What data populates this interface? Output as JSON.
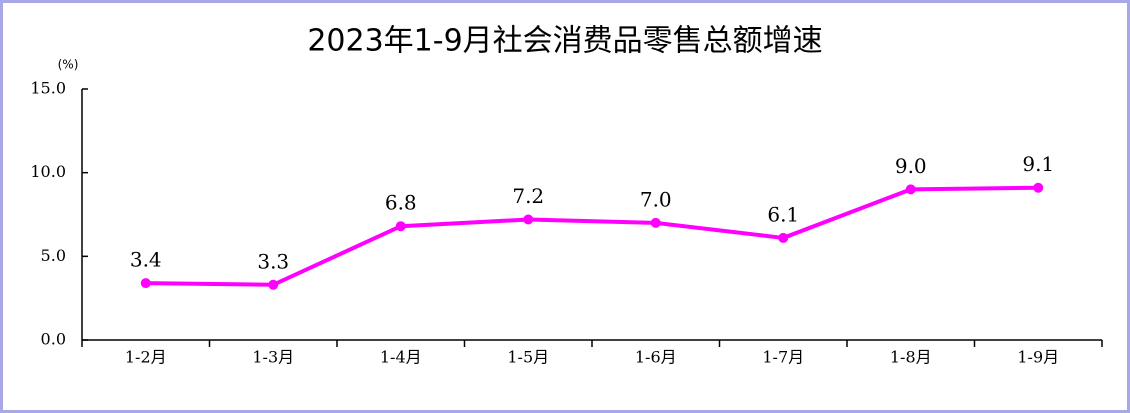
{
  "chart_data": {
    "type": "line",
    "title": "2023年1-9月社会消费品零售总额增速",
    "y_unit": "(%)",
    "categories": [
      "1-2月",
      "1-3月",
      "1-4月",
      "1-5月",
      "1-6月",
      "1-7月",
      "1-8月",
      "1-9月"
    ],
    "series": [
      {
        "color": "#ff00ff",
        "values": [
          3.4,
          3.3,
          6.8,
          7.2,
          7.0,
          6.1,
          9.0,
          9.1
        ],
        "value_labels": [
          "3.4",
          "3.3",
          "6.8",
          "7.2",
          "7.0",
          "6.1",
          "9.0",
          "9.1"
        ]
      }
    ],
    "ylim": [
      0,
      15
    ],
    "yticks": [
      {
        "value": 0,
        "label": "0.0"
      },
      {
        "value": 5,
        "label": "5.0"
      },
      {
        "value": 10,
        "label": "10.0"
      },
      {
        "value": 15,
        "label": "15.0"
      }
    ],
    "grid": false
  }
}
